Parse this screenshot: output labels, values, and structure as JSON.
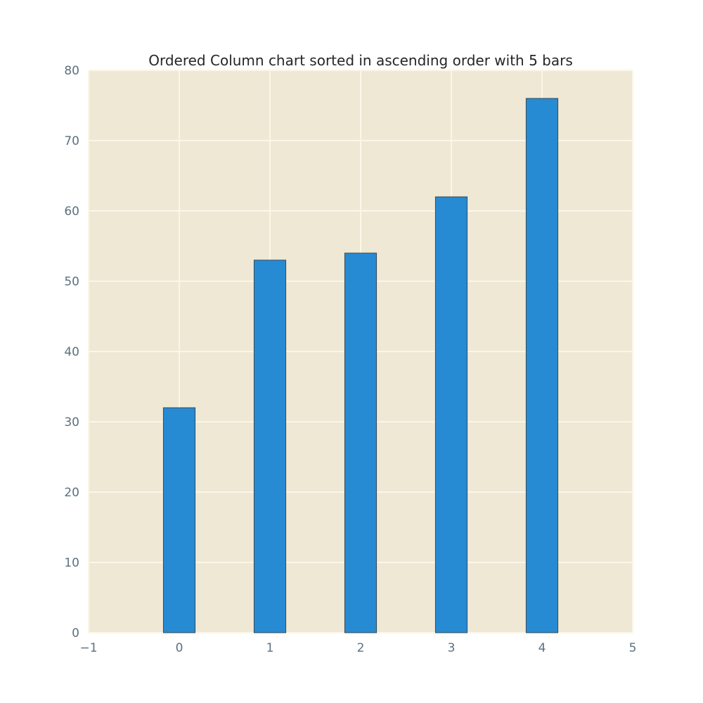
{
  "chart_data": {
    "type": "bar",
    "title": "Ordered Column chart sorted in ascending order with 5 bars",
    "xlabel": "",
    "ylabel": "",
    "x": [
      0,
      1,
      2,
      3,
      4
    ],
    "values": [
      32,
      53,
      54,
      62,
      76
    ],
    "bar_width": 0.35,
    "xlim": [
      -1,
      5
    ],
    "ylim": [
      0,
      80
    ],
    "x_ticks": [
      -1,
      0,
      1,
      2,
      3,
      4,
      5
    ],
    "x_tick_labels": [
      "−1",
      "0",
      "1",
      "2",
      "3",
      "4",
      "5"
    ],
    "y_ticks": [
      0,
      10,
      20,
      30,
      40,
      50,
      60,
      70,
      80
    ],
    "y_tick_labels": [
      "0",
      "10",
      "20",
      "30",
      "40",
      "50",
      "60",
      "70",
      "80"
    ],
    "grid": true,
    "legend": "none"
  },
  "colors": {
    "plot_background": "#efe8d5",
    "bar_fill": "#268bd2",
    "bar_edge": "#3a4a55",
    "grid": "#fbf6e8",
    "tick_text": "#5a7180",
    "title_text": "#262626"
  }
}
